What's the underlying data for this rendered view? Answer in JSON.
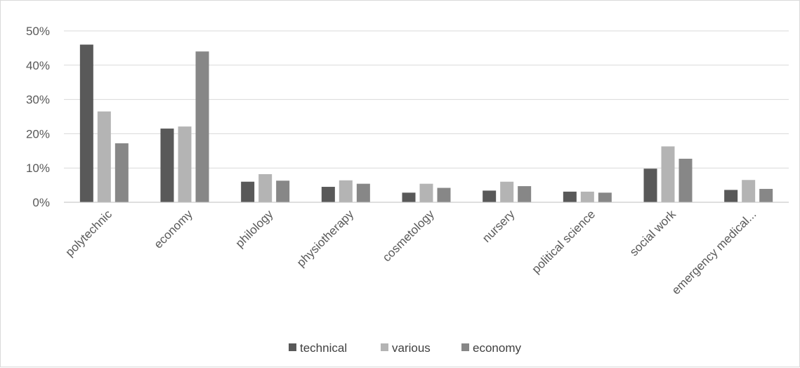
{
  "chart_data": {
    "type": "bar",
    "title": "",
    "xlabel": "",
    "ylabel": "",
    "ylim": [
      0,
      0.5
    ],
    "y_ticks": [
      0,
      0.1,
      0.2,
      0.3,
      0.4,
      0.5
    ],
    "y_tick_labels": [
      "0%",
      "10%",
      "20%",
      "30%",
      "40%",
      "50%"
    ],
    "grid": true,
    "legend_position": "bottom",
    "categories": [
      "polytechnic",
      "economy",
      "philology",
      "physiotherapy",
      "cosmetology",
      "nursery",
      "political science",
      "social work",
      "emergency medical..."
    ],
    "series": [
      {
        "name": "technical",
        "color": "#595959",
        "values": [
          0.46,
          0.215,
          0.06,
          0.045,
          0.028,
          0.034,
          0.031,
          0.098,
          0.036
        ]
      },
      {
        "name": "various",
        "color": "#b4b4b4",
        "values": [
          0.265,
          0.221,
          0.082,
          0.064,
          0.054,
          0.06,
          0.031,
          0.163,
          0.065
        ]
      },
      {
        "name": "economy",
        "color": "#878787",
        "values": [
          0.172,
          0.44,
          0.063,
          0.054,
          0.042,
          0.047,
          0.028,
          0.127,
          0.039
        ]
      }
    ]
  }
}
